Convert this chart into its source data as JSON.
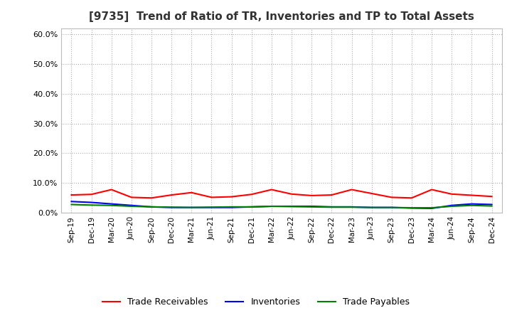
{
  "title": "[9735]  Trend of Ratio of TR, Inventories and TP to Total Assets",
  "x_labels": [
    "Sep-19",
    "Dec-19",
    "Mar-20",
    "Jun-20",
    "Sep-20",
    "Dec-20",
    "Mar-21",
    "Jun-21",
    "Sep-21",
    "Dec-21",
    "Mar-22",
    "Jun-22",
    "Sep-22",
    "Dec-22",
    "Mar-23",
    "Jun-23",
    "Sep-23",
    "Dec-23",
    "Mar-24",
    "Jun-24",
    "Sep-24",
    "Dec-24"
  ],
  "trade_receivables": [
    0.06,
    0.062,
    0.078,
    0.052,
    0.05,
    0.06,
    0.068,
    0.052,
    0.054,
    0.062,
    0.078,
    0.063,
    0.058,
    0.06,
    0.078,
    0.065,
    0.052,
    0.05,
    0.078,
    0.063,
    0.059,
    0.055
  ],
  "inventories": [
    0.038,
    0.035,
    0.03,
    0.025,
    0.02,
    0.018,
    0.018,
    0.018,
    0.018,
    0.02,
    0.022,
    0.022,
    0.022,
    0.02,
    0.02,
    0.018,
    0.018,
    0.016,
    0.015,
    0.025,
    0.03,
    0.028
  ],
  "trade_payables": [
    0.028,
    0.026,
    0.025,
    0.022,
    0.02,
    0.019,
    0.018,
    0.019,
    0.02,
    0.02,
    0.022,
    0.021,
    0.02,
    0.019,
    0.019,
    0.018,
    0.018,
    0.017,
    0.017,
    0.022,
    0.025,
    0.023
  ],
  "tr_color": "#FF0000",
  "inv_color": "#0000FF",
  "tp_color": "#008000",
  "ylim": [
    0.0,
    0.62
  ],
  "yticks": [
    0.0,
    0.1,
    0.2,
    0.3,
    0.4,
    0.5,
    0.6
  ],
  "bg_color": "#ffffff",
  "grid_color": "#888888",
  "legend_labels": [
    "Trade Receivables",
    "Inventories",
    "Trade Payables"
  ],
  "title_fontsize": 11,
  "tick_fontsize": 8
}
